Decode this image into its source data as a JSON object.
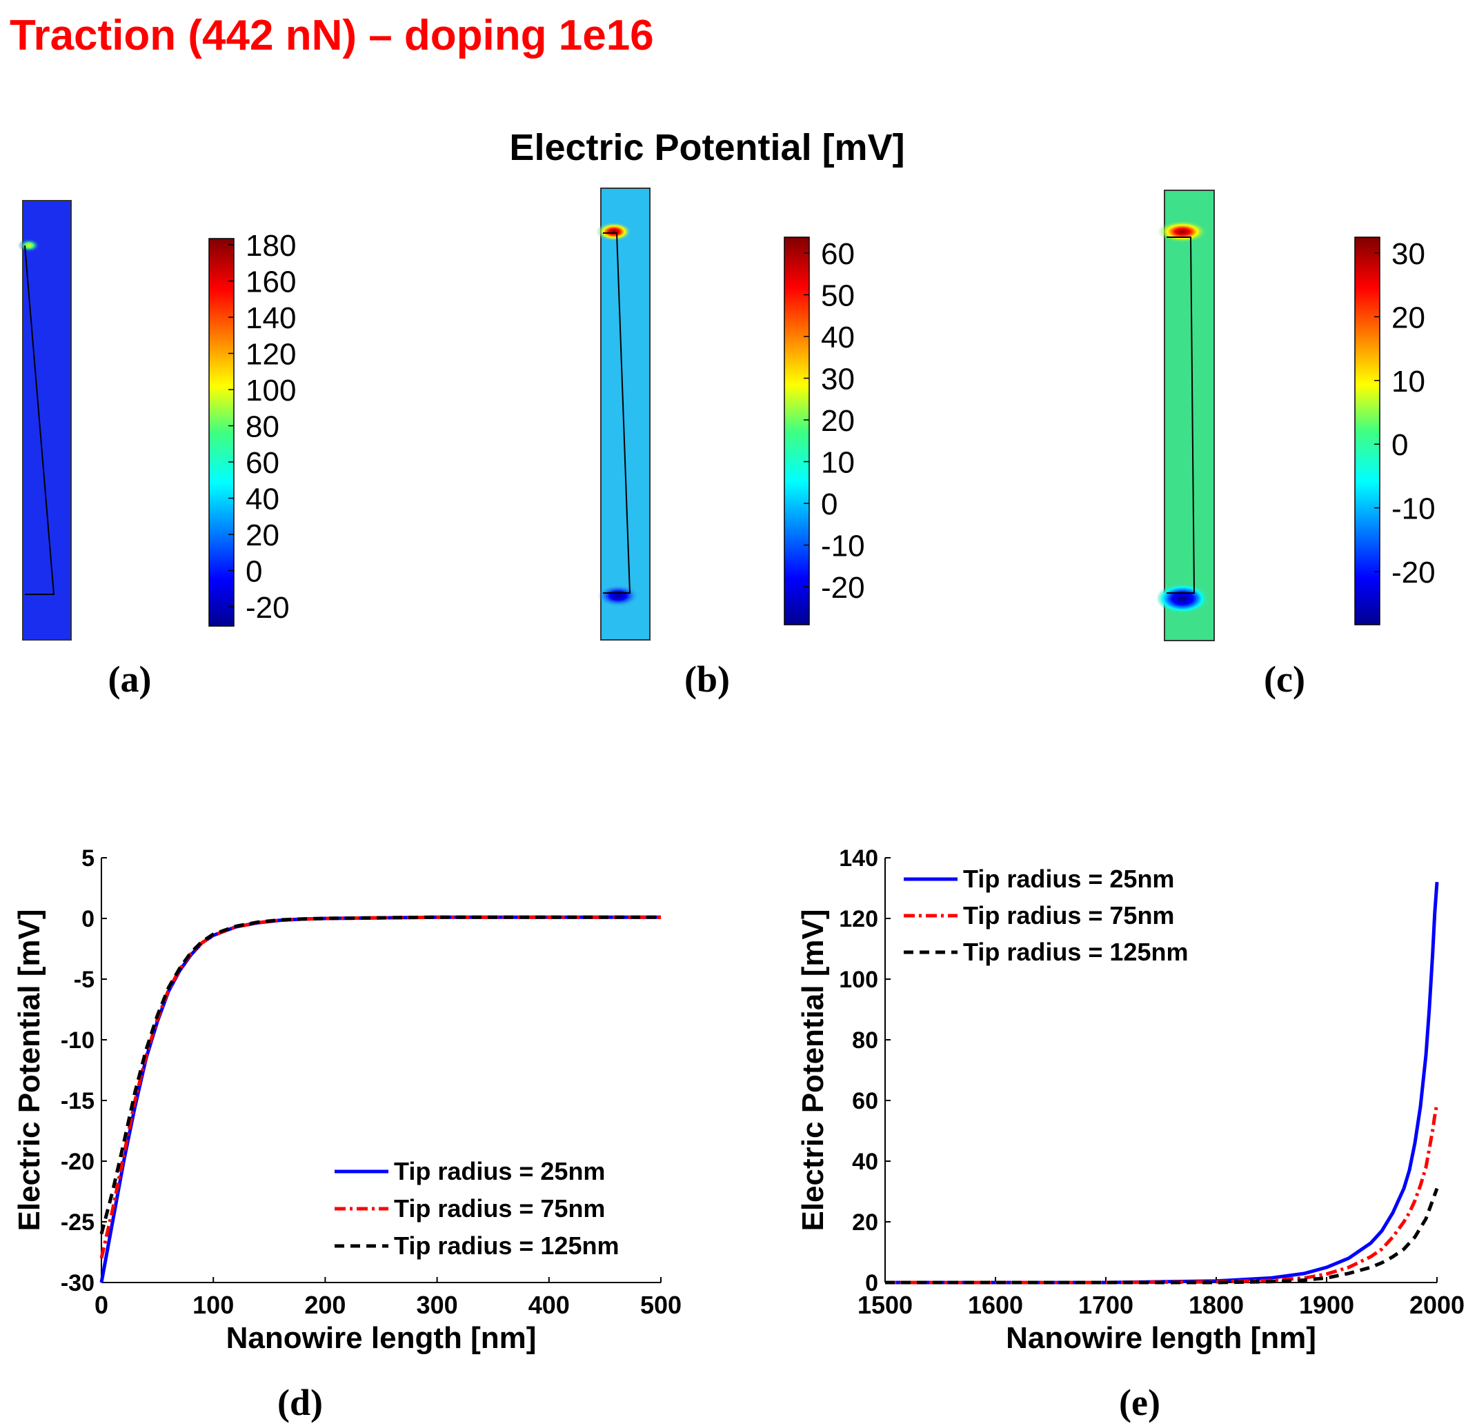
{
  "header": {
    "title": "Traction (442 nN) – doping 1e16",
    "title_color": "#ff0000"
  },
  "maps": {
    "title": "Electric Potential  [mV]",
    "panels": [
      {
        "letter": "(a)",
        "ticks": [
          "180",
          "160",
          "140",
          "120",
          "100",
          "80",
          "60",
          "40",
          "20",
          "0",
          "-20"
        ],
        "fill_color": "#1a2ef0"
      },
      {
        "letter": "(b)",
        "ticks": [
          "60",
          "50",
          "40",
          "30",
          "20",
          "10",
          "0",
          "-10",
          "-20"
        ],
        "fill_color": "#2bbef0"
      },
      {
        "letter": "(c)",
        "ticks": [
          "30",
          "20",
          "10",
          "0",
          "-10",
          "-20"
        ],
        "fill_color": "#3fe08a"
      }
    ]
  },
  "chart_data": [
    {
      "type": "line",
      "panel": "(d)",
      "xlabel": "Nanowire length [nm]",
      "ylabel": "Electric Potential [mV]",
      "xlim": [
        0,
        500
      ],
      "ylim": [
        -30,
        5
      ],
      "xticks": [
        0,
        100,
        200,
        300,
        400,
        500
      ],
      "yticks": [
        5,
        0,
        -5,
        -10,
        -15,
        -20,
        -25,
        -30
      ],
      "legend_position": "bottom-right",
      "series": [
        {
          "name": "Tip radius = 25nm",
          "color": "#0000ff",
          "style": "solid",
          "x": [
            0,
            10,
            20,
            30,
            40,
            50,
            60,
            70,
            80,
            90,
            100,
            120,
            140,
            160,
            180,
            200,
            250,
            300,
            350,
            400,
            450,
            500
          ],
          "y": [
            -30,
            -25,
            -20,
            -15.5,
            -11.5,
            -8.5,
            -6,
            -4.3,
            -3,
            -2,
            -1.4,
            -0.7,
            -0.35,
            -0.15,
            -0.05,
            0,
            0.05,
            0.1,
            0.1,
            0.1,
            0.1,
            0.1
          ]
        },
        {
          "name": "Tip radius = 75nm",
          "color": "#ff0000",
          "style": "dashdot",
          "x": [
            0,
            10,
            20,
            30,
            40,
            50,
            60,
            70,
            80,
            90,
            100,
            120,
            140,
            160,
            180,
            200,
            250,
            300,
            350,
            400,
            450,
            500
          ],
          "y": [
            -28,
            -24,
            -19.5,
            -15,
            -11.3,
            -8.3,
            -5.9,
            -4.2,
            -2.9,
            -2,
            -1.4,
            -0.7,
            -0.35,
            -0.15,
            -0.05,
            0,
            0.05,
            0.1,
            0.1,
            0.1,
            0.1,
            0.1
          ]
        },
        {
          "name": "Tip radius = 125nm",
          "color": "#000000",
          "style": "dashed",
          "x": [
            0,
            10,
            20,
            30,
            40,
            50,
            60,
            70,
            80,
            90,
            100,
            120,
            140,
            160,
            180,
            200,
            250,
            300,
            350,
            400,
            450,
            500
          ],
          "y": [
            -26,
            -22.5,
            -18.5,
            -14.3,
            -10.8,
            -8,
            -5.7,
            -4.1,
            -2.8,
            -1.9,
            -1.3,
            -0.65,
            -0.3,
            -0.12,
            -0.04,
            0,
            0.05,
            0.1,
            0.1,
            0.1,
            0.1,
            0.1
          ]
        }
      ]
    },
    {
      "type": "line",
      "panel": "(e)",
      "xlabel": "Nanowire length [nm]",
      "ylabel": "Electric Potential [mV]",
      "xlim": [
        1500,
        2000
      ],
      "ylim": [
        0,
        140
      ],
      "xticks": [
        1500,
        1600,
        1700,
        1800,
        1900,
        2000
      ],
      "yticks": [
        140,
        120,
        100,
        80,
        60,
        40,
        20,
        0
      ],
      "legend_position": "top-left",
      "series": [
        {
          "name": "Tip radius = 25nm",
          "color": "#0000ff",
          "style": "solid",
          "x": [
            1500,
            1600,
            1700,
            1800,
            1850,
            1880,
            1900,
            1920,
            1940,
            1950,
            1960,
            1970,
            1975,
            1980,
            1985,
            1990,
            1993,
            1996,
            1998,
            2000
          ],
          "y": [
            0,
            0,
            0,
            0.5,
            1.5,
            3,
            5,
            8,
            13,
            17,
            23,
            31,
            37,
            46,
            58,
            75,
            90,
            108,
            122,
            132
          ]
        },
        {
          "name": "Tip radius = 75nm",
          "color": "#ff0000",
          "style": "dashdot",
          "x": [
            1500,
            1600,
            1700,
            1800,
            1850,
            1880,
            1900,
            1920,
            1940,
            1950,
            1960,
            1970,
            1975,
            1980,
            1985,
            1990,
            1993,
            1996,
            1998,
            2000
          ],
          "y": [
            0,
            0,
            0,
            0.2,
            0.7,
            1.5,
            2.8,
            5,
            8.5,
            11,
            15,
            20,
            23,
            27,
            32,
            38,
            44,
            50,
            55,
            59
          ]
        },
        {
          "name": "Tip radius = 125nm",
          "color": "#000000",
          "style": "dashed",
          "x": [
            1500,
            1600,
            1700,
            1800,
            1850,
            1880,
            1900,
            1920,
            1940,
            1950,
            1960,
            1970,
            1975,
            1980,
            1985,
            1990,
            1993,
            1996,
            1998,
            2000
          ],
          "y": [
            0,
            0,
            0,
            0,
            0.3,
            0.8,
            1.5,
            3,
            5,
            6.5,
            8.5,
            11,
            13,
            15,
            18,
            21,
            24,
            27,
            29,
            31
          ]
        }
      ]
    }
  ],
  "panel_letters": {
    "d": "(d)",
    "e": "(e)"
  }
}
